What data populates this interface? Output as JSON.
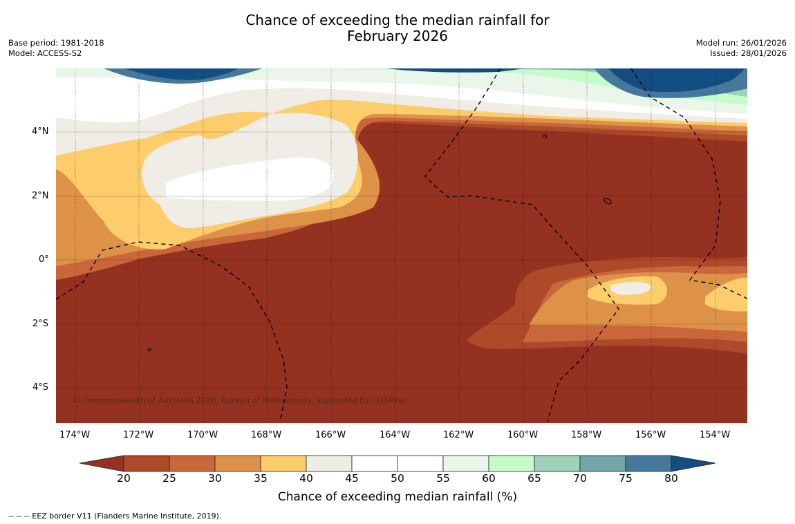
{
  "title": {
    "line1": "Chance of exceeding the median rainfall for",
    "line2": "February 2026"
  },
  "meta": {
    "base_period": "Base period: 1981-2018",
    "model": "Model: ACCESS-S2",
    "model_run": "Model run: 26/01/2026",
    "issued": "Issued: 28/01/2026"
  },
  "map": {
    "lat_labels": [
      "4°N",
      "2°N",
      "0°",
      "2°S",
      "4°S"
    ],
    "lon_labels": [
      "174°W",
      "172°W",
      "170°W",
      "168°W",
      "166°W",
      "164°W",
      "162°W",
      "160°W",
      "158°W",
      "156°W",
      "154°W"
    ],
    "copyright": "© Commonwealth of Australia 2026, Bureau of Meteorology, supported by COSPPac"
  },
  "colorbar": {
    "ticks": [
      "20",
      "25",
      "30",
      "35",
      "40",
      "45",
      "50",
      "55",
      "60",
      "65",
      "70",
      "75",
      "80"
    ],
    "colors": [
      "#953120",
      "#ad4a2a",
      "#c9663a",
      "#de9248",
      "#fdcd6c",
      "#f0ece6",
      "#ffffff",
      "#ffffff",
      "#eaf6ea",
      "#c8fbcc",
      "#9dd1b9",
      "#72a7a8",
      "#45789a",
      "#144d82"
    ],
    "label": "Chance of exceeding median rainfall (%)"
  },
  "footer": "--  --  -- EEZ border V11 (Flanders Marine Institute, 2019)."
}
